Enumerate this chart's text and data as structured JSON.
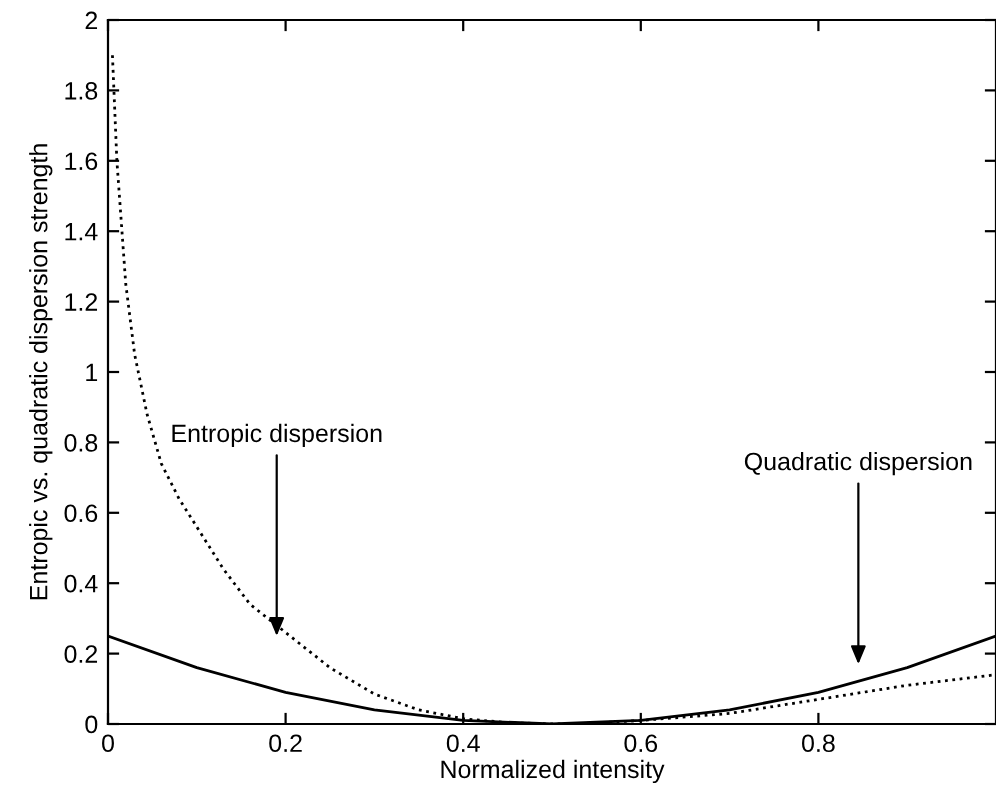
{
  "chart_data": {
    "type": "line",
    "xlabel": "Normalized intensity",
    "ylabel": "Entropic vs. quadratic dispersion strength",
    "xlim": [
      0,
      1
    ],
    "ylim": [
      0,
      2
    ],
    "xticks": [
      0,
      0.2,
      0.4,
      0.6,
      0.8
    ],
    "yticks": [
      0,
      0.2,
      0.4,
      0.6,
      0.8,
      1,
      1.2,
      1.4,
      1.6,
      1.8,
      2
    ],
    "grid": false,
    "legend": false,
    "marker": "none",
    "series": [
      {
        "color": "#000000",
        "line_style": "dotted",
        "x": [
          0.005,
          0.01,
          0.02,
          0.03,
          0.044,
          0.06,
          0.08,
          0.1,
          0.13,
          0.16,
          0.2,
          0.25,
          0.3,
          0.35,
          0.4,
          0.45,
          0.5,
          0.55,
          0.6,
          0.7,
          0.8,
          0.9,
          1.0
        ],
        "values": [
          1.9,
          1.6,
          1.25,
          1.05,
          0.88,
          0.74,
          0.64,
          0.56,
          0.44,
          0.34,
          0.26,
          0.16,
          0.085,
          0.04,
          0.015,
          0.004,
          0,
          0.003,
          0.01,
          0.03,
          0.07,
          0.11,
          0.14
        ]
      },
      {
        "color": "#000000",
        "line_style": "solid",
        "x": [
          0,
          0.1,
          0.2,
          0.3,
          0.4,
          0.5,
          0.6,
          0.7,
          0.8,
          0.9,
          1.0
        ],
        "values": [
          0.25,
          0.16,
          0.09,
          0.04,
          0.01,
          0,
          0.01,
          0.04,
          0.09,
          0.16,
          0.25
        ]
      }
    ],
    "annotations": [
      {
        "text": "Entropic dispersion",
        "x": 0.19,
        "y": 0.25
      },
      "Quadratic dispersion"
    ]
  }
}
